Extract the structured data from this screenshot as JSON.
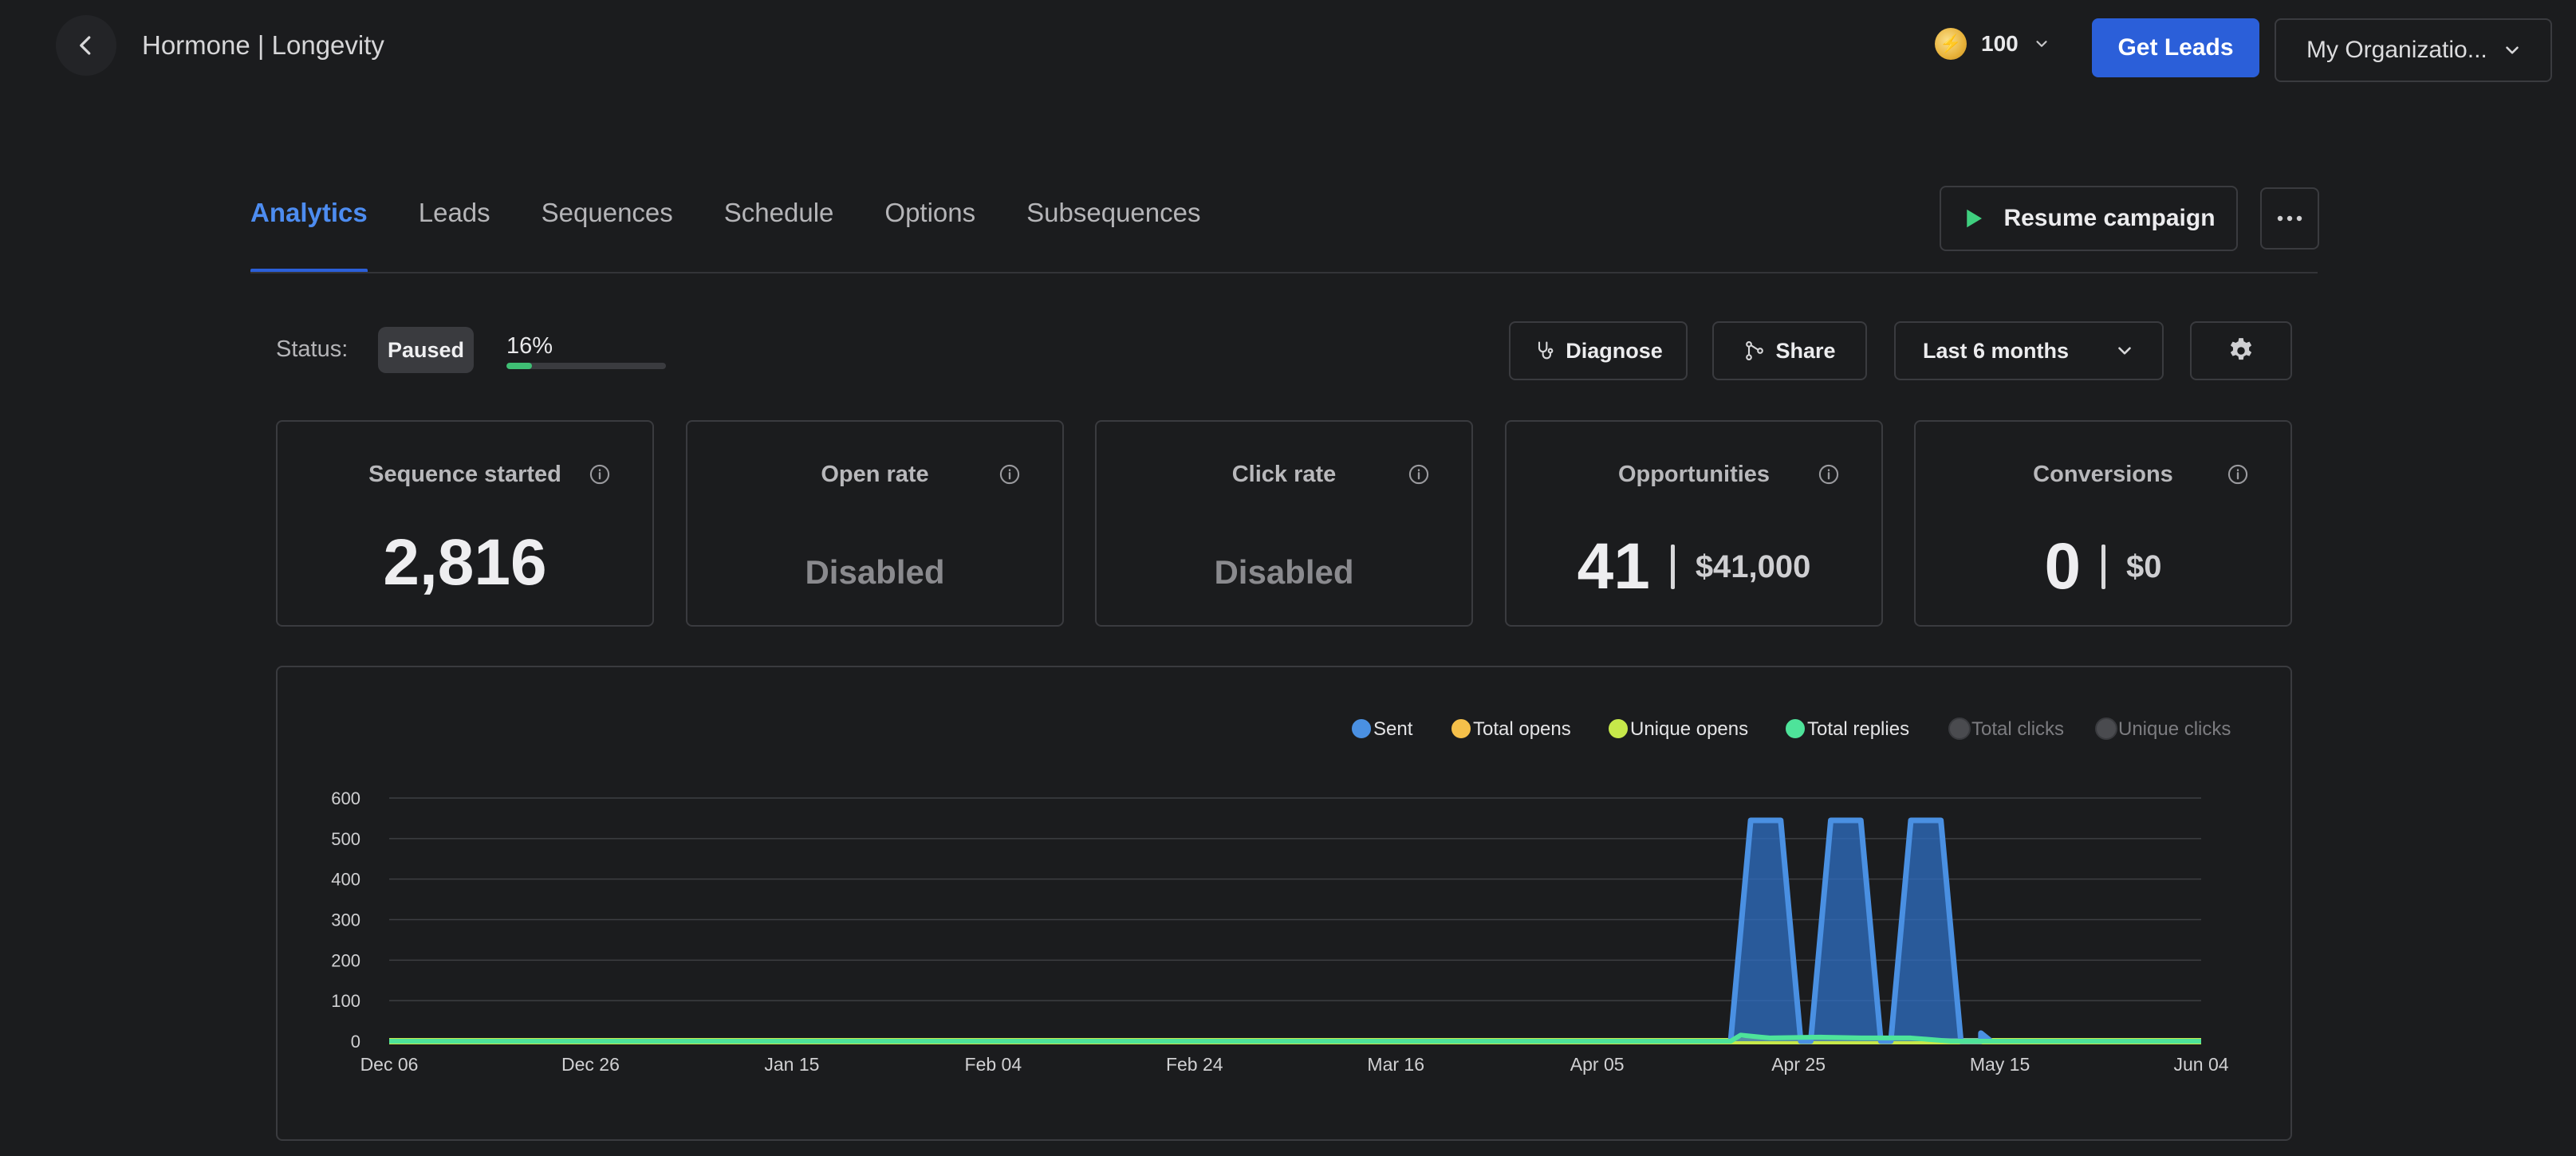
{
  "header": {
    "title": "Hormone | Longevity",
    "credits": "100",
    "get_leads_label": "Get Leads",
    "org_label": "My Organizatio..."
  },
  "tabs": [
    {
      "label": "Analytics",
      "active": true
    },
    {
      "label": "Leads"
    },
    {
      "label": "Sequences"
    },
    {
      "label": "Schedule"
    },
    {
      "label": "Options"
    },
    {
      "label": "Subsequences"
    }
  ],
  "actions": {
    "resume_label": "Resume campaign"
  },
  "status": {
    "label": "Status:",
    "value": "Paused",
    "progress_text": "16%",
    "progress_fraction": 0.16,
    "progress_color": "#3fbf74"
  },
  "toolbar": {
    "diagnose_label": "Diagnose",
    "share_label": "Share",
    "range_label": "Last 6 months"
  },
  "metrics": {
    "sequence_started": {
      "title": "Sequence started",
      "value": "2,816"
    },
    "open_rate": {
      "title": "Open rate",
      "value": "Disabled"
    },
    "click_rate": {
      "title": "Click rate",
      "value": "Disabled"
    },
    "opportunities": {
      "title": "Opportunities",
      "count": "41",
      "amount": "$41,000"
    },
    "conversions": {
      "title": "Conversions",
      "count": "0",
      "amount": "$0"
    }
  },
  "colors": {
    "accent": "#2b5fd9",
    "tab_active": "#4d8cf0",
    "background": "#1b1c1e"
  },
  "chart_data": {
    "type": "area",
    "x_tick_labels": [
      "Dec 06",
      "Dec 26",
      "Jan 15",
      "Feb 04",
      "Feb 24",
      "Mar 16",
      "Apr 05",
      "Apr 25",
      "May 15",
      "Jun 04"
    ],
    "x_range": [
      "2023-12-06",
      "2024-06-04"
    ],
    "y_ticks": [
      0,
      100,
      200,
      300,
      400,
      500,
      600
    ],
    "ylim": [
      0,
      600
    ],
    "grid": true,
    "legend_position": "top-right",
    "series": [
      {
        "name": "Sent",
        "color": "#4a90e2",
        "enabled": true,
        "points": [
          [
            "2024-04-18",
            0
          ],
          [
            "2024-04-20",
            545
          ],
          [
            "2024-04-23",
            545
          ],
          [
            "2024-04-25",
            0
          ],
          [
            "2024-04-26",
            0
          ],
          [
            "2024-04-28",
            545
          ],
          [
            "2024-05-01",
            545
          ],
          [
            "2024-05-03",
            0
          ],
          [
            "2024-05-04",
            0
          ],
          [
            "2024-05-06",
            545
          ],
          [
            "2024-05-09",
            545
          ],
          [
            "2024-05-11",
            0
          ],
          [
            "2024-05-13",
            0
          ],
          [
            "2024-05-13",
            20
          ],
          [
            "2024-05-14",
            0
          ]
        ]
      },
      {
        "name": "Total opens",
        "color": "#f5c04a",
        "enabled": true,
        "points": [
          [
            "2023-12-06",
            0
          ],
          [
            "2024-06-04",
            0
          ]
        ]
      },
      {
        "name": "Unique opens",
        "color": "#c6e84a",
        "enabled": true,
        "points": [
          [
            "2023-12-06",
            0
          ],
          [
            "2024-06-04",
            0
          ]
        ]
      },
      {
        "name": "Total replies",
        "color": "#4ee39a",
        "enabled": true,
        "points": [
          [
            "2023-12-06",
            0
          ],
          [
            "2024-04-18",
            0
          ],
          [
            "2024-04-19",
            15
          ],
          [
            "2024-04-21",
            10
          ],
          [
            "2024-04-22",
            8
          ],
          [
            "2024-04-27",
            10
          ],
          [
            "2024-05-01",
            8
          ],
          [
            "2024-05-06",
            8
          ],
          [
            "2024-05-10",
            0
          ],
          [
            "2024-06-04",
            0
          ]
        ]
      },
      {
        "name": "Total clicks",
        "color": "#4a4b4f",
        "enabled": false,
        "points": []
      },
      {
        "name": "Unique clicks",
        "color": "#4a4b4f",
        "enabled": false,
        "points": []
      }
    ]
  }
}
